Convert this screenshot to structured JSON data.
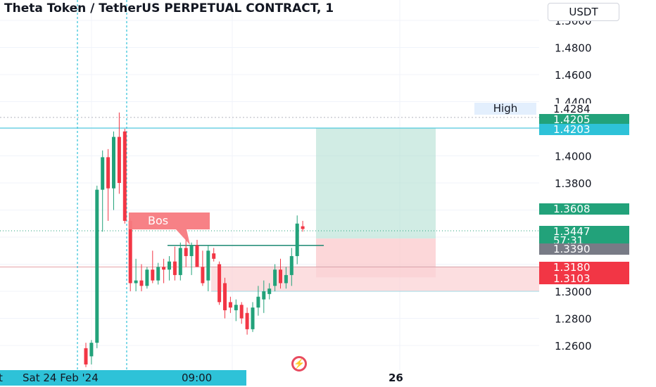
{
  "header": {
    "title": "Theta Token / TetherUS PERPETUAL CONTRACT, 1",
    "currency": "USDT"
  },
  "price_axis": {
    "high_label": "High",
    "tags": {
      "high": "1.4284",
      "tag_a": "1.4205",
      "tag_b": "1.4203",
      "tag_c": "1.3608",
      "last": "1.3447",
      "countdown": "57:31",
      "tag_d": "1.3390",
      "tag_e": "1.3180",
      "tag_f": "1.3103"
    },
    "colors": {
      "green": "#22a27a",
      "cyan": "#2ec2d8",
      "gray": "#787b86",
      "red": "#f23645"
    }
  },
  "time_axis": {
    "left_fragment": "t",
    "crosshair_date": "Sat 24 Feb '24",
    "crosshair_time": "09:00",
    "label_26": "26"
  },
  "annotations": {
    "bos": "Bos",
    "flash_icon": "lightning-icon"
  },
  "chart_data": {
    "type": "candlestick",
    "title": "Theta Token / TetherUS PERPETUAL CONTRACT, 1",
    "ylim": [
      1.24,
      1.51
    ],
    "yticks": [
      1.26,
      1.28,
      1.3,
      1.32,
      1.34,
      1.36,
      1.38,
      1.4,
      1.42,
      1.44,
      1.46,
      1.48,
      1.5
    ],
    "x_tick_labels": [
      "26"
    ],
    "candles": [
      {
        "o": 1.258,
        "h": 1.262,
        "l": 1.244,
        "c": 1.246
      },
      {
        "o": 1.252,
        "h": 1.264,
        "l": 1.246,
        "c": 1.262
      },
      {
        "o": 1.262,
        "h": 1.378,
        "l": 1.258,
        "c": 1.375
      },
      {
        "o": 1.375,
        "h": 1.404,
        "l": 1.344,
        "c": 1.399
      },
      {
        "o": 1.399,
        "h": 1.405,
        "l": 1.352,
        "c": 1.376
      },
      {
        "o": 1.376,
        "h": 1.418,
        "l": 1.36,
        "c": 1.414
      },
      {
        "o": 1.414,
        "h": 1.432,
        "l": 1.372,
        "c": 1.38
      },
      {
        "o": 1.418,
        "h": 1.42,
        "l": 1.35,
        "c": 1.352
      },
      {
        "o": 1.352,
        "h": 1.354,
        "l": 1.3,
        "c": 1.306
      },
      {
        "o": 1.306,
        "h": 1.324,
        "l": 1.3,
        "c": 1.308
      },
      {
        "o": 1.308,
        "h": 1.32,
        "l": 1.3,
        "c": 1.304
      },
      {
        "o": 1.304,
        "h": 1.318,
        "l": 1.302,
        "c": 1.316
      },
      {
        "o": 1.316,
        "h": 1.33,
        "l": 1.306,
        "c": 1.308
      },
      {
        "o": 1.308,
        "h": 1.321,
        "l": 1.305,
        "c": 1.318
      },
      {
        "o": 1.318,
        "h": 1.324,
        "l": 1.306,
        "c": 1.316
      },
      {
        "o": 1.316,
        "h": 1.326,
        "l": 1.308,
        "c": 1.322
      },
      {
        "o": 1.322,
        "h": 1.333,
        "l": 1.308,
        "c": 1.312
      },
      {
        "o": 1.312,
        "h": 1.336,
        "l": 1.308,
        "c": 1.332
      },
      {
        "o": 1.332,
        "h": 1.34,
        "l": 1.318,
        "c": 1.326
      },
      {
        "o": 1.326,
        "h": 1.336,
        "l": 1.312,
        "c": 1.334
      },
      {
        "o": 1.334,
        "h": 1.338,
        "l": 1.318,
        "c": 1.318
      },
      {
        "o": 1.318,
        "h": 1.33,
        "l": 1.304,
        "c": 1.306
      },
      {
        "o": 1.308,
        "h": 1.334,
        "l": 1.3,
        "c": 1.33
      },
      {
        "o": 1.328,
        "h": 1.332,
        "l": 1.322,
        "c": 1.324
      },
      {
        "o": 1.32,
        "h": 1.322,
        "l": 1.29,
        "c": 1.292
      },
      {
        "o": 1.306,
        "h": 1.31,
        "l": 1.28,
        "c": 1.286
      },
      {
        "o": 1.292,
        "h": 1.296,
        "l": 1.284,
        "c": 1.288
      },
      {
        "o": 1.286,
        "h": 1.294,
        "l": 1.278,
        "c": 1.29
      },
      {
        "o": 1.29,
        "h": 1.292,
        "l": 1.276,
        "c": 1.28
      },
      {
        "o": 1.284,
        "h": 1.288,
        "l": 1.268,
        "c": 1.272
      },
      {
        "o": 1.272,
        "h": 1.292,
        "l": 1.27,
        "c": 1.288
      },
      {
        "o": 1.288,
        "h": 1.304,
        "l": 1.282,
        "c": 1.296
      },
      {
        "o": 1.294,
        "h": 1.308,
        "l": 1.284,
        "c": 1.3
      },
      {
        "o": 1.298,
        "h": 1.306,
        "l": 1.294,
        "c": 1.302
      },
      {
        "o": 1.304,
        "h": 1.32,
        "l": 1.3,
        "c": 1.316
      },
      {
        "o": 1.316,
        "h": 1.324,
        "l": 1.302,
        "c": 1.306
      },
      {
        "o": 1.306,
        "h": 1.318,
        "l": 1.302,
        "c": 1.312
      },
      {
        "o": 1.312,
        "h": 1.332,
        "l": 1.304,
        "c": 1.326
      },
      {
        "o": 1.326,
        "h": 1.356,
        "l": 1.32,
        "c": 1.35
      },
      {
        "o": 1.348,
        "h": 1.352,
        "l": 1.344,
        "c": 1.346
      }
    ],
    "horizontal_lines": [
      1.4284,
      1.4205,
      1.3447,
      1.318,
      1.3339
    ],
    "target_zone": {
      "from": 1.339,
      "to": 1.4205
    },
    "stop_zone": {
      "from": 1.3103,
      "to": 1.339
    },
    "demand_zone": {
      "from": 1.3,
      "to": 1.318
    },
    "grid": true
  }
}
